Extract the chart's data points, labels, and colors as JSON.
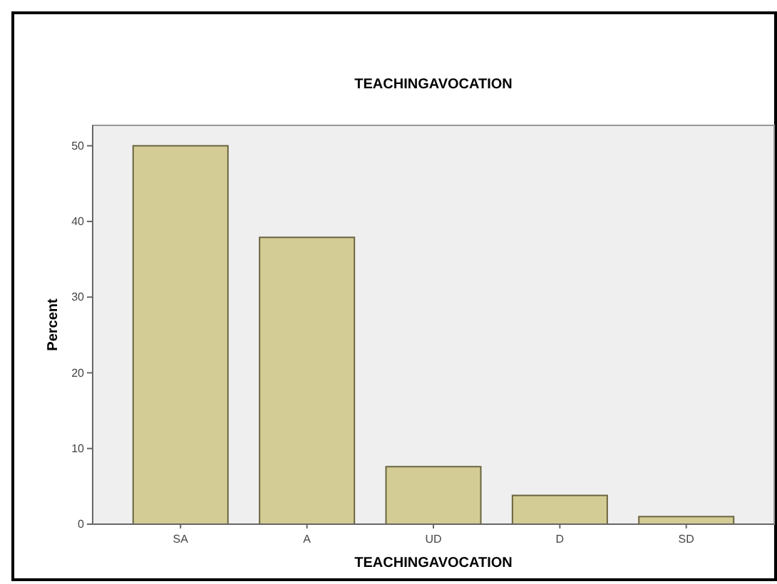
{
  "chart_data": {
    "type": "bar",
    "title": "TEACHINGAVOCATION",
    "xlabel": "TEACHINGAVOCATION",
    "ylabel": "Percent",
    "categories": [
      "SA",
      "A",
      "UD",
      "D",
      "SD"
    ],
    "values": [
      50,
      37.9,
      7.6,
      3.8,
      1.0
    ],
    "color": "#d3cc95",
    "ylim": [
      0,
      52.7
    ],
    "yticks": [
      0,
      10,
      20,
      30,
      40,
      50
    ],
    "grid": false
  }
}
